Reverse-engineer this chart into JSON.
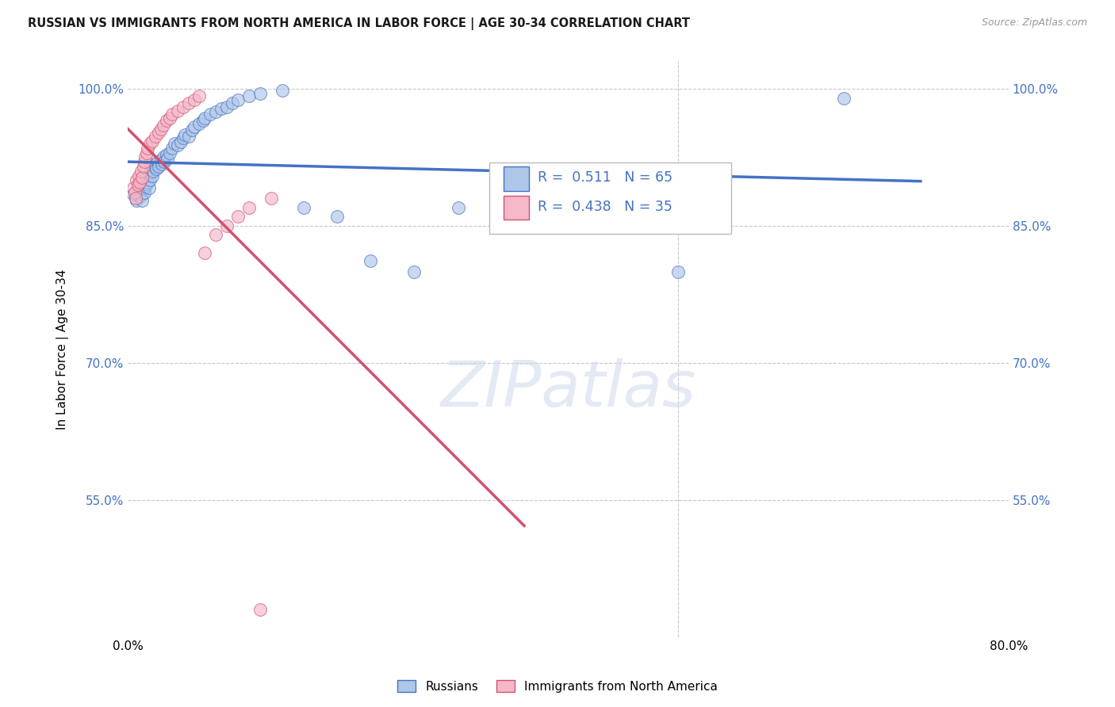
{
  "title": "RUSSIAN VS IMMIGRANTS FROM NORTH AMERICA IN LABOR FORCE | AGE 30-34 CORRELATION CHART",
  "source": "Source: ZipAtlas.com",
  "ylabel": "In Labor Force | Age 30-34",
  "xlim": [
    0.0,
    0.8
  ],
  "ylim": [
    0.4,
    1.03
  ],
  "yticks": [
    0.55,
    0.7,
    0.85,
    1.0
  ],
  "ytick_labels": [
    "55.0%",
    "70.0%",
    "85.0%",
    "100.0%"
  ],
  "xticks": [
    0.0,
    0.1,
    0.2,
    0.3,
    0.4,
    0.5,
    0.6,
    0.7,
    0.8
  ],
  "xtick_labels": [
    "0.0%",
    "",
    "",
    "",
    "",
    "",
    "",
    "",
    "80.0%"
  ],
  "blue_R": 0.511,
  "blue_N": 65,
  "pink_R": 0.438,
  "pink_N": 35,
  "blue_color": "#aec6e8",
  "blue_line_color": "#4472c4",
  "pink_color": "#f4b8c8",
  "pink_line_color": "#d45070",
  "background_color": "#ffffff",
  "grid_color": "#c8c8c8",
  "legend_label_blue": "Russians",
  "legend_label_pink": "Immigrants from North America",
  "blue_scatter_x": [
    0.005,
    0.007,
    0.008,
    0.01,
    0.01,
    0.011,
    0.012,
    0.012,
    0.013,
    0.013,
    0.014,
    0.015,
    0.015,
    0.016,
    0.016,
    0.017,
    0.017,
    0.018,
    0.018,
    0.019,
    0.02,
    0.02,
    0.021,
    0.022,
    0.023,
    0.024,
    0.025,
    0.026,
    0.027,
    0.028,
    0.03,
    0.031,
    0.032,
    0.033,
    0.035,
    0.036,
    0.038,
    0.04,
    0.042,
    0.045,
    0.048,
    0.05,
    0.052,
    0.055,
    0.058,
    0.06,
    0.065,
    0.068,
    0.07,
    0.075,
    0.08,
    0.085,
    0.09,
    0.095,
    0.1,
    0.11,
    0.12,
    0.14,
    0.16,
    0.19,
    0.22,
    0.26,
    0.3,
    0.5,
    0.65
  ],
  "blue_scatter_y": [
    0.885,
    0.88,
    0.878,
    0.895,
    0.888,
    0.882,
    0.896,
    0.89,
    0.885,
    0.878,
    0.898,
    0.892,
    0.886,
    0.9,
    0.893,
    0.903,
    0.896,
    0.905,
    0.898,
    0.892,
    0.908,
    0.9,
    0.912,
    0.905,
    0.91,
    0.915,
    0.918,
    0.912,
    0.92,
    0.915,
    0.922,
    0.918,
    0.925,
    0.92,
    0.928,
    0.924,
    0.93,
    0.935,
    0.94,
    0.938,
    0.942,
    0.946,
    0.95,
    0.948,
    0.955,
    0.958,
    0.962,
    0.965,
    0.968,
    0.972,
    0.975,
    0.978,
    0.98,
    0.984,
    0.988,
    0.992,
    0.995,
    0.998,
    0.87,
    0.86,
    0.812,
    0.8,
    0.87,
    0.8,
    0.99
  ],
  "pink_scatter_x": [
    0.005,
    0.006,
    0.007,
    0.008,
    0.009,
    0.01,
    0.011,
    0.012,
    0.013,
    0.014,
    0.015,
    0.016,
    0.017,
    0.018,
    0.02,
    0.022,
    0.025,
    0.028,
    0.03,
    0.032,
    0.035,
    0.038,
    0.04,
    0.045,
    0.05,
    0.055,
    0.06,
    0.065,
    0.07,
    0.08,
    0.09,
    0.1,
    0.11,
    0.13,
    0.12
  ],
  "pink_scatter_y": [
    0.892,
    0.886,
    0.88,
    0.9,
    0.895,
    0.905,
    0.898,
    0.91,
    0.903,
    0.915,
    0.92,
    0.925,
    0.93,
    0.935,
    0.94,
    0.943,
    0.948,
    0.952,
    0.956,
    0.96,
    0.965,
    0.968,
    0.972,
    0.976,
    0.98,
    0.984,
    0.988,
    0.992,
    0.82,
    0.84,
    0.85,
    0.86,
    0.87,
    0.88,
    0.43
  ]
}
